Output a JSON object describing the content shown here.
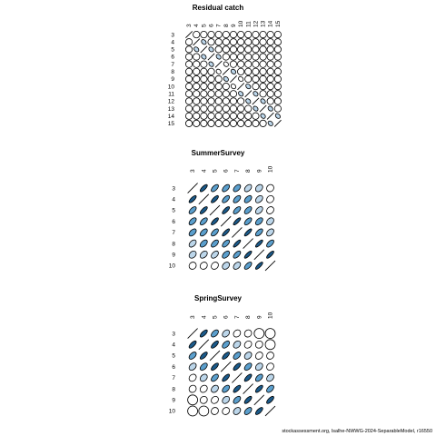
{
  "footer": "stockassessment.org, lsalhe-NWWG-2024-SeparableModel, r16550",
  "chart_data": [
    {
      "type": "correlation-ellipse-matrix",
      "title": "Residual catch",
      "ages": [
        "3",
        "4",
        "5",
        "6",
        "7",
        "8",
        "9",
        "10",
        "11",
        "12",
        "13",
        "14",
        "15"
      ],
      "fill_scale": {
        "neg_strong": "#1b5a8a",
        "mid": "#5b9fcd",
        "light": "#bcd6ea",
        "none": "#ffffff"
      },
      "correlation": [
        [
          1,
          -0.05,
          0.02,
          0.01,
          -0.03,
          0.04,
          0.02,
          -0.02,
          0.01,
          0.03,
          -0.04,
          0.02,
          0.01
        ],
        [
          -0.05,
          1,
          -0.3,
          0.02,
          0.03,
          -0.02,
          0.01,
          0.02,
          -0.01,
          0.02,
          0.03,
          -0.02,
          0.01
        ],
        [
          0.02,
          -0.3,
          1,
          -0.25,
          0.02,
          0.03,
          -0.02,
          0.01,
          0.02,
          -0.03,
          0.01,
          0.02,
          -0.01
        ],
        [
          0.01,
          0.02,
          -0.25,
          1,
          -0.3,
          0.02,
          0.01,
          -0.02,
          0.03,
          0.01,
          -0.02,
          0.01,
          0.02
        ],
        [
          -0.03,
          0.03,
          0.02,
          -0.3,
          1,
          -0.2,
          0.02,
          0.01,
          -0.02,
          0.02,
          0.01,
          -0.03,
          0.02
        ],
        [
          0.04,
          -0.02,
          0.03,
          0.02,
          -0.2,
          1,
          -0.25,
          0.02,
          0.01,
          -0.02,
          0.03,
          0.01,
          -0.02
        ],
        [
          0.02,
          0.01,
          -0.02,
          0.01,
          0.02,
          -0.25,
          1,
          -0.2,
          0.02,
          0.01,
          -0.02,
          0.02,
          0.01
        ],
        [
          -0.02,
          0.02,
          0.01,
          -0.02,
          0.01,
          0.02,
          -0.2,
          1,
          -0.3,
          0.02,
          0.01,
          -0.02,
          0.02
        ],
        [
          0.01,
          -0.01,
          0.02,
          0.03,
          -0.02,
          0.01,
          0.02,
          -0.3,
          1,
          -0.25,
          0.02,
          0.01,
          -0.02
        ],
        [
          0.03,
          0.02,
          -0.03,
          0.01,
          0.02,
          -0.02,
          0.01,
          0.02,
          -0.25,
          1,
          -0.3,
          0.02,
          0.01
        ],
        [
          -0.04,
          0.03,
          0.01,
          -0.02,
          0.01,
          0.03,
          -0.02,
          0.01,
          0.02,
          -0.3,
          1,
          -0.25,
          0.02
        ],
        [
          0.02,
          -0.02,
          0.02,
          0.01,
          -0.03,
          0.01,
          0.02,
          -0.02,
          0.01,
          0.02,
          -0.25,
          1,
          -0.3
        ],
        [
          0.01,
          0.01,
          -0.01,
          0.02,
          0.02,
          -0.02,
          0.01,
          0.02,
          -0.02,
          0.01,
          0.02,
          -0.3,
          1
        ]
      ]
    },
    {
      "type": "correlation-ellipse-matrix",
      "title": "SummerSurvey",
      "ages": [
        "3",
        "4",
        "5",
        "6",
        "7",
        "8",
        "9",
        "10"
      ],
      "fill_scale": {
        "neg_strong": "#1b5a8a",
        "mid": "#5b9fcd",
        "light": "#bcd6ea",
        "none": "#ffffff"
      },
      "correlation": [
        [
          1,
          0.75,
          0.6,
          0.55,
          0.5,
          0.45,
          0.3,
          0.1
        ],
        [
          0.75,
          1,
          0.75,
          0.6,
          0.55,
          0.5,
          0.4,
          0.15
        ],
        [
          0.6,
          0.75,
          1,
          0.75,
          0.6,
          0.55,
          0.45,
          0.2
        ],
        [
          0.55,
          0.6,
          0.75,
          1,
          0.8,
          0.6,
          0.5,
          0.3
        ],
        [
          0.5,
          0.55,
          0.6,
          0.8,
          1,
          0.8,
          0.6,
          0.4
        ],
        [
          0.45,
          0.5,
          0.55,
          0.6,
          0.8,
          1,
          0.8,
          0.6
        ],
        [
          0.3,
          0.4,
          0.45,
          0.5,
          0.6,
          0.8,
          1,
          0.8
        ],
        [
          0.1,
          0.15,
          0.2,
          0.3,
          0.4,
          0.6,
          0.8,
          1
        ]
      ]
    },
    {
      "type": "correlation-ellipse-matrix",
      "title": "SpringSurvey",
      "ages": [
        "3",
        "4",
        "5",
        "6",
        "7",
        "8",
        "9",
        "10"
      ],
      "fill_scale": {
        "neg_strong": "#1b5a8a",
        "mid": "#5b9fcd",
        "light": "#bcd6ea",
        "none": "#ffffff"
      },
      "correlation": [
        [
          1,
          0.7,
          0.5,
          0.35,
          0.2,
          0.1,
          0.05,
          0.0
        ],
        [
          0.7,
          1,
          0.7,
          0.5,
          0.3,
          0.2,
          0.1,
          0.05
        ],
        [
          0.5,
          0.7,
          1,
          0.7,
          0.5,
          0.3,
          0.2,
          0.1
        ],
        [
          0.35,
          0.5,
          0.7,
          1,
          0.7,
          0.5,
          0.3,
          0.15
        ],
        [
          0.2,
          0.3,
          0.5,
          0.7,
          1,
          0.7,
          0.5,
          0.3
        ],
        [
          0.1,
          0.2,
          0.3,
          0.5,
          0.7,
          1,
          0.7,
          0.5
        ],
        [
          0.05,
          0.1,
          0.2,
          0.3,
          0.5,
          0.7,
          1,
          0.7
        ],
        [
          0.0,
          0.05,
          0.1,
          0.15,
          0.3,
          0.5,
          0.7,
          1
        ]
      ]
    }
  ]
}
